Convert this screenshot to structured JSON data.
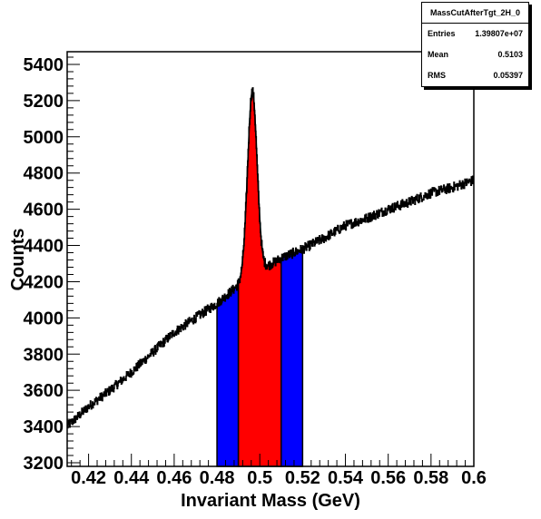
{
  "chart_data": {
    "type": "histogram",
    "title": "",
    "xlabel": "Invariant Mass (GeV)",
    "ylabel": "Counts",
    "xlim": [
      0.41,
      0.6
    ],
    "ylim": [
      3180,
      5470
    ],
    "x_ticks": [
      0.42,
      0.44,
      0.46,
      0.48,
      0.5,
      0.52,
      0.54,
      0.56,
      0.58,
      0.6
    ],
    "x_tick_labels": [
      "0.42",
      "0.44",
      "0.46",
      "0.48",
      "0.5",
      "0.52",
      "0.54",
      "0.56",
      "0.58",
      "0.6"
    ],
    "y_ticks": [
      3200,
      3400,
      3600,
      3800,
      4000,
      4200,
      4400,
      4600,
      4800,
      5000,
      5200,
      5400
    ],
    "y_tick_labels": [
      "3200",
      "3400",
      "3600",
      "3800",
      "4000",
      "4200",
      "4400",
      "4600",
      "4800",
      "5000",
      "5200",
      "5400"
    ],
    "background_curve": {
      "x": [
        0.41,
        0.42,
        0.43,
        0.44,
        0.45,
        0.46,
        0.47,
        0.48,
        0.49,
        0.5,
        0.51,
        0.52,
        0.53,
        0.54,
        0.55,
        0.56,
        0.57,
        0.58,
        0.59,
        0.6
      ],
      "y": [
        3400,
        3510,
        3600,
        3700,
        3810,
        3920,
        4000,
        4080,
        4180,
        4260,
        4330,
        4380,
        4440,
        4510,
        4550,
        4600,
        4640,
        4690,
        4720,
        4760
      ]
    },
    "peak": {
      "center": 0.4965,
      "amplitude": 1020,
      "sigma": 0.0022
    },
    "shaded_regions": [
      {
        "name": "sideband-left",
        "range": [
          0.48,
          0.49
        ],
        "color": "#0000ff"
      },
      {
        "name": "signal",
        "range": [
          0.49,
          0.51
        ],
        "color": "#ff0000"
      },
      {
        "name": "sideband-right",
        "range": [
          0.51,
          0.52
        ],
        "color": "#0000ff"
      }
    ],
    "line_color": "#000000",
    "stats": {
      "title": "MassCutAfterTgt_2H_0",
      "rows": [
        {
          "label": "Entries",
          "value": "1.39807e+07"
        },
        {
          "label": "Mean",
          "value": "0.5103"
        },
        {
          "label": "RMS",
          "value": "0.05397"
        }
      ]
    }
  }
}
